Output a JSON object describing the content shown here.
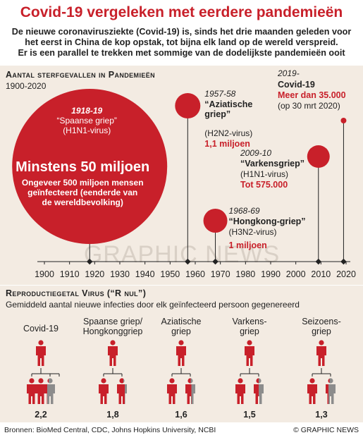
{
  "title": "Covid-19 vergeleken met eerdere pandemieën",
  "intro": [
    "De nieuwe coronavirusziekte (Covid-19) is, sinds het drie maanden geleden voor",
    "het eerst in China de kop opstak, tot bijna elk land op de wereld verspreid.",
    "Er is een parallel te trekken met sommige van de dodelijkste pandemieën ooit"
  ],
  "colors": {
    "red": "#c8202a",
    "grey": "#8c8c8c",
    "panel": "#f3ebe2",
    "dark": "#222222"
  },
  "section1": {
    "heading": "Aantal sterfgevallen in Pandemieën",
    "subheading": "1900-2020"
  },
  "section2": {
    "heading": "Reproductiegetal Virus (“R nul”)",
    "subheading": "Gemiddeld aantal nieuwe infecties door elk geïnfecteerd persoon gegenereerd"
  },
  "chart_data": [
    {
      "type": "scatter",
      "title": "Aantal sterfgevallen in Pandemieën",
      "subtitle": "1900-2020",
      "x_ticks": [
        1900,
        1910,
        1920,
        1930,
        1940,
        1950,
        1960,
        1970,
        1980,
        1990,
        2000,
        2010,
        2020
      ],
      "xlim": [
        1900,
        2020
      ],
      "points": [
        {
          "x": 1918,
          "deaths": 50000000,
          "years": "1918-19",
          "name": "“Spaanse griep”",
          "virus": "(H1N1-virus)",
          "value_label": "Minstens 50 miljoen",
          "note_lines": [
            "Ongeveer 500 miljoen mensen",
            "geïnfecteerd (eenderde van",
            "de wereldbevolking)"
          ]
        },
        {
          "x": 1957,
          "deaths": 1100000,
          "years": "1957-58",
          "name_lines": [
            "“Aziatische",
            "griep”"
          ],
          "virus": "(H2N2-virus)",
          "value_label": "1,1 miljoen"
        },
        {
          "x": 1968,
          "deaths": 1000000,
          "years": "1968-69",
          "name": "“Hongkong-griep”",
          "virus": "(H3N2-virus)",
          "value_label": "1 miljoen"
        },
        {
          "x": 2009,
          "deaths": 575000,
          "years": "2009-10",
          "name": "“Varkensgriep”",
          "virus": "(H1N1-virus)",
          "value_label": "Tot 575.000"
        },
        {
          "x": 2019,
          "deaths": 35000,
          "years": "2019-",
          "name": "Covid-19",
          "value_label": "Meer dan 35.000",
          "note": "(op 30 mrt 2020)"
        }
      ]
    },
    {
      "type": "bar",
      "title": "Reproductiegetal Virus (“R nul”)",
      "subtitle": "Gemiddeld aantal nieuwe infecties door elk geïnfecteerd persoon gegenereerd",
      "categories": [
        "Covid-19",
        "Spaanse griep/ Hongkonggriep",
        "Aziatische griep",
        "Varkensgriep",
        "Seizoensgriep"
      ],
      "category_lines": [
        [
          "Covid-19"
        ],
        [
          "Spaanse griep/",
          "Hongkonggriep"
        ],
        [
          "Aziatische",
          "griep"
        ],
        [
          "Varkens-",
          "griep"
        ],
        [
          "Seizoens-",
          "griep"
        ]
      ],
      "values": [
        2.2,
        1.8,
        1.6,
        1.5,
        1.3
      ],
      "value_labels": [
        "2,2",
        "1,8",
        "1,6",
        "1,5",
        "1,3"
      ]
    }
  ],
  "watermark": "GRAPHIC NEWS",
  "footer": {
    "sources": "Bronnen: BioMed Central, CDC, Johns Hopkins University, NCBI",
    "credit": "© GRAPHIC NEWS"
  }
}
